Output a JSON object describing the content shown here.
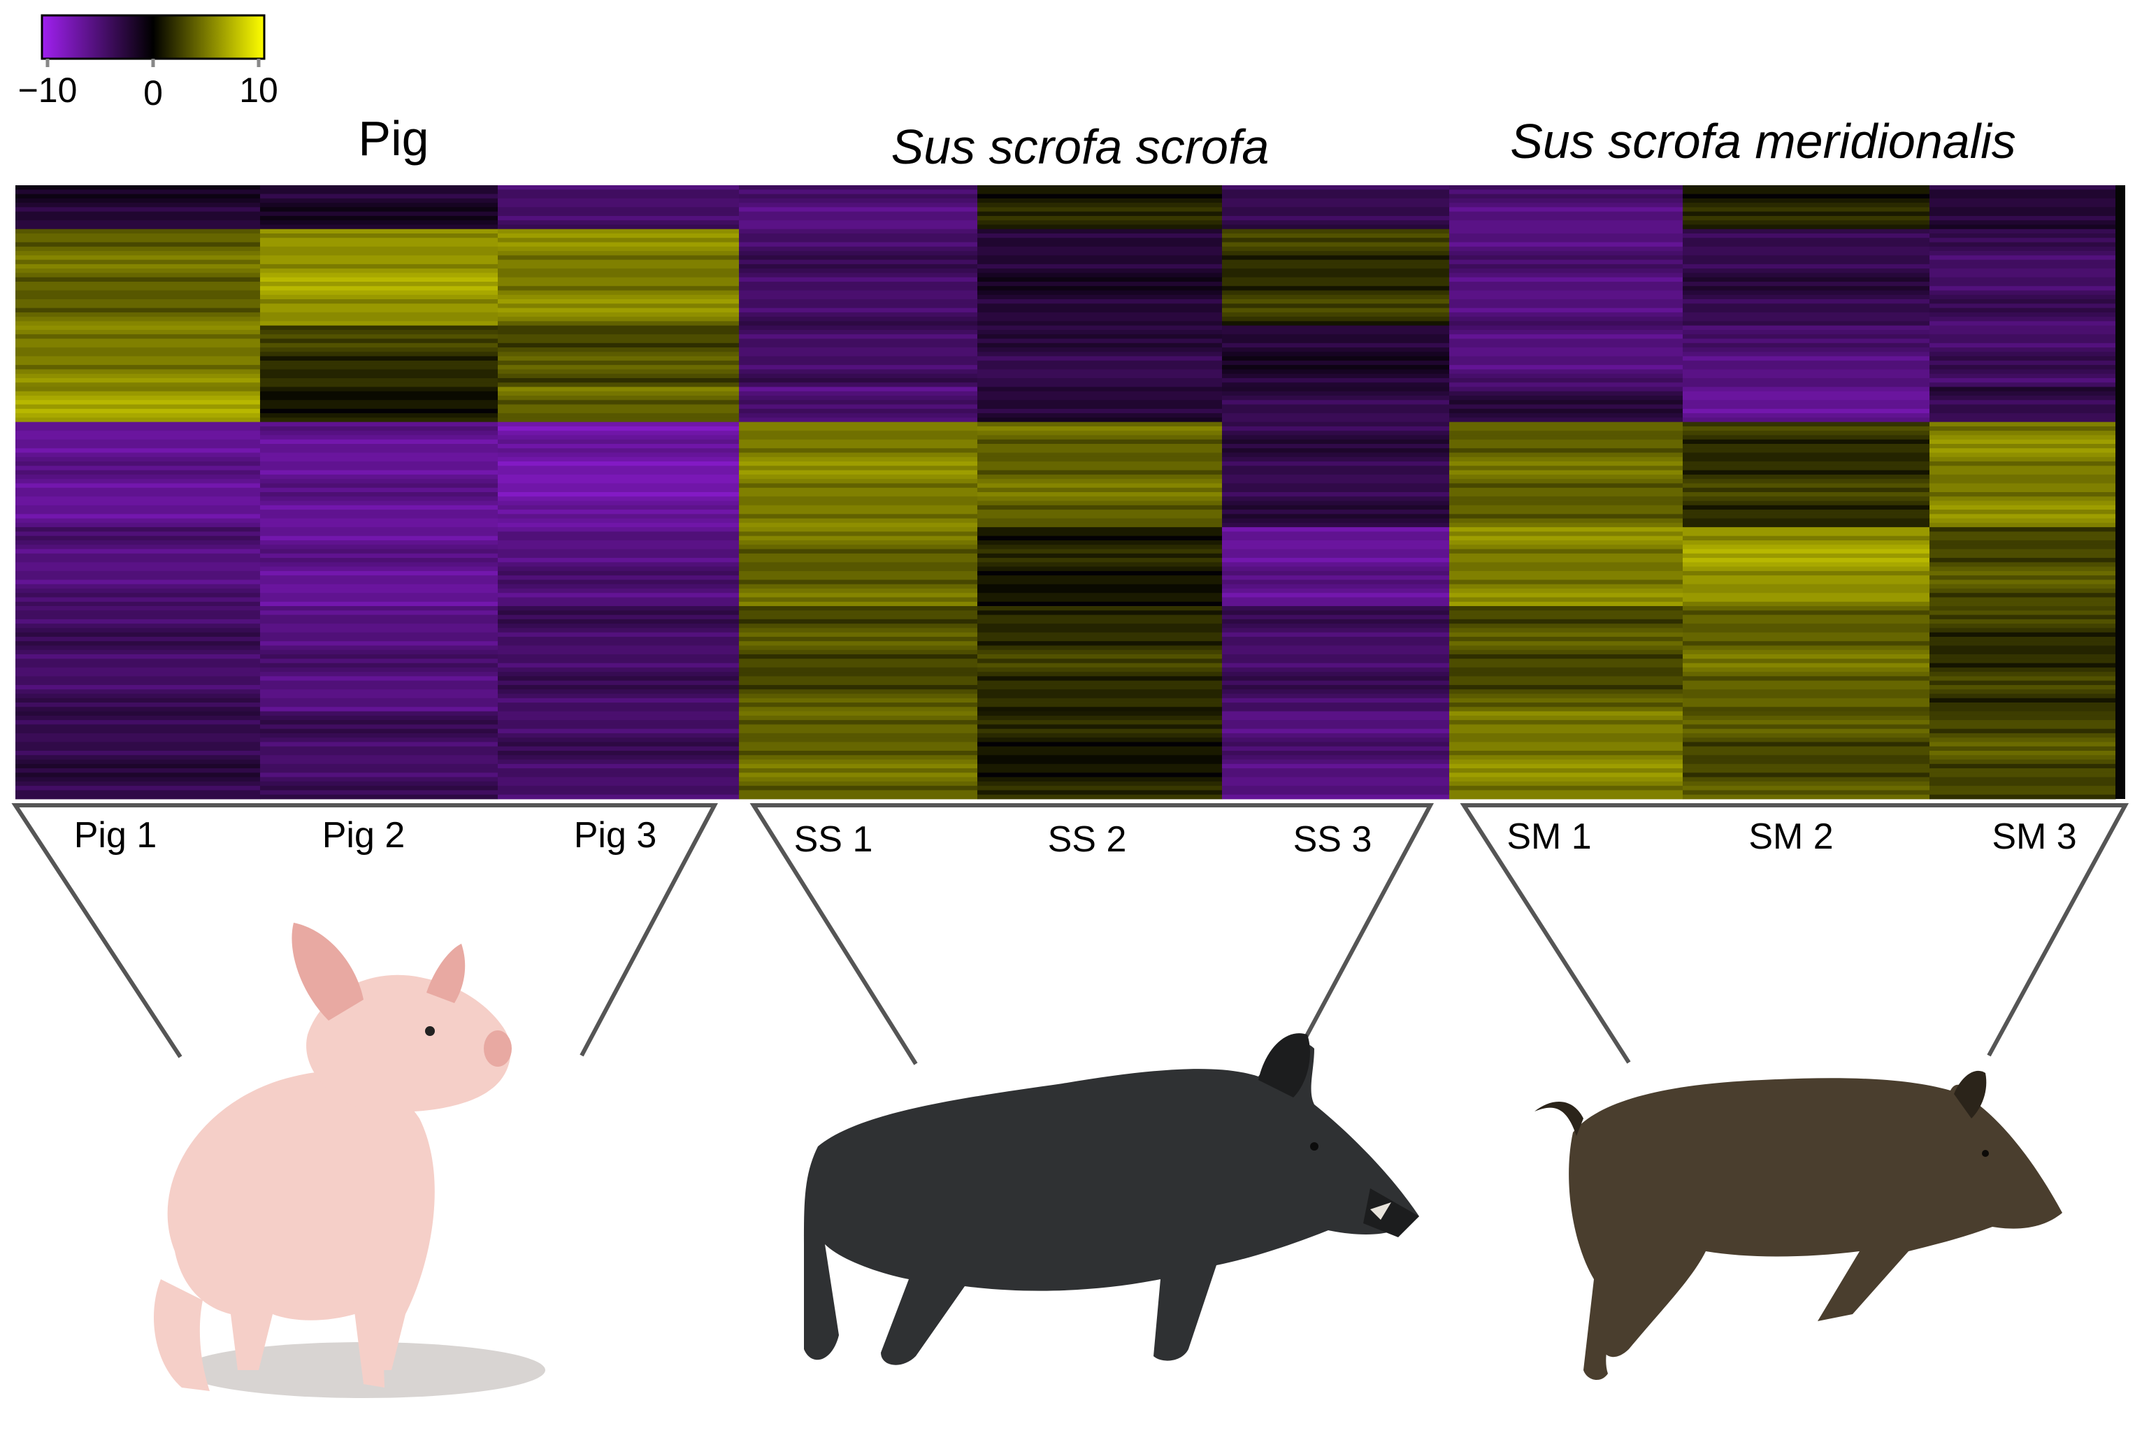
{
  "chart_data": {
    "type": "heatmap",
    "colorbar": {
      "ticks": [
        "−10",
        "0",
        "10"
      ],
      "range": [
        -10,
        10
      ],
      "colors": {
        "low": "#a020f0",
        "mid": "#000000",
        "high": "#ffff00"
      }
    },
    "groups": [
      {
        "name": "Pig",
        "italic": false,
        "samples": [
          "Pig 1",
          "Pig 2",
          "Pig 3"
        ]
      },
      {
        "name": "Sus scrofa scrofa",
        "italic": true,
        "samples": [
          "SS 1",
          "SS 2",
          "SS 3"
        ]
      },
      {
        "name": "Sus scrofa meridionalis",
        "italic": true,
        "samples": [
          "SM 1",
          "SM 2",
          "SM 3"
        ]
      }
    ],
    "row_blocks": [
      {
        "rows": 10,
        "values": [
          -2,
          -2,
          -4,
          -5,
          1,
          -3,
          -5,
          1,
          -2
        ]
      },
      {
        "rows": 22,
        "values": [
          4,
          6,
          5,
          -4,
          -2,
          2,
          -5,
          -3,
          -4
        ]
      },
      {
        "rows": 14,
        "values": [
          5,
          2,
          3,
          -4,
          -3,
          -2,
          -5,
          -5,
          -4
        ]
      },
      {
        "rows": 8,
        "values": [
          6,
          1,
          4,
          -5,
          -2,
          -3,
          -3,
          -6,
          -3
        ]
      },
      {
        "rows": 24,
        "values": [
          -6,
          -6,
          -7,
          5,
          4,
          -3,
          4,
          2,
          5
        ]
      },
      {
        "rows": 18,
        "values": [
          -5,
          -6,
          -5,
          4,
          1,
          -6,
          5,
          6,
          3
        ]
      },
      {
        "rows": 24,
        "values": [
          -4,
          -5,
          -4,
          3,
          2,
          -4,
          3,
          4,
          2
        ]
      },
      {
        "rows": 20,
        "values": [
          -3,
          -4,
          -4,
          4,
          1,
          -5,
          5,
          3,
          3
        ]
      }
    ]
  },
  "animals": [
    {
      "name": "domestic-pig-photo",
      "body": "#f5cfc8",
      "shade": "#e8a9a2"
    },
    {
      "name": "wild-boar-ss-photo",
      "body": "#2f3133",
      "shade": "#1c1d1e"
    },
    {
      "name": "wild-boar-sm-photo",
      "body": "#4a3e2e",
      "shade": "#2b241a"
    }
  ]
}
